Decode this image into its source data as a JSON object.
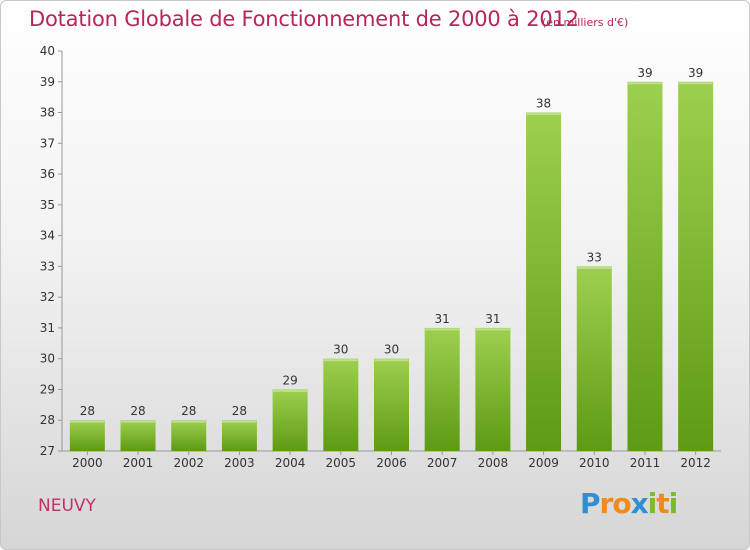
{
  "header": {
    "title": "Dotation Globale de Fonctionnement de 2000 à 2012",
    "subtitle": "(en milliers d'€)"
  },
  "footer": {
    "commune": "NEUVY",
    "logo_text": "Proxiti"
  },
  "colors": {
    "title": "#b8245c",
    "bar_top": "#9dd04e",
    "bar_bottom": "#5e9a14",
    "axis": "#999999",
    "grid": "#dddddd"
  },
  "chart_data": {
    "type": "bar",
    "title": "Dotation Globale de Fonctionnement de 2000 à 2012",
    "subtitle": "(en milliers d'€)",
    "xlabel": "",
    "ylabel": "",
    "categories": [
      "2000",
      "2001",
      "2002",
      "2003",
      "2004",
      "2005",
      "2006",
      "2007",
      "2008",
      "2009",
      "2010",
      "2011",
      "2012"
    ],
    "values": [
      28,
      28,
      28,
      28,
      29,
      30,
      30,
      31,
      31,
      38,
      33,
      39,
      39
    ],
    "ylim": [
      27,
      40
    ],
    "yticks": [
      27,
      28,
      29,
      30,
      31,
      32,
      33,
      34,
      35,
      36,
      37,
      38,
      39,
      40
    ],
    "data_labels": true,
    "grid": false,
    "legend": "none"
  }
}
